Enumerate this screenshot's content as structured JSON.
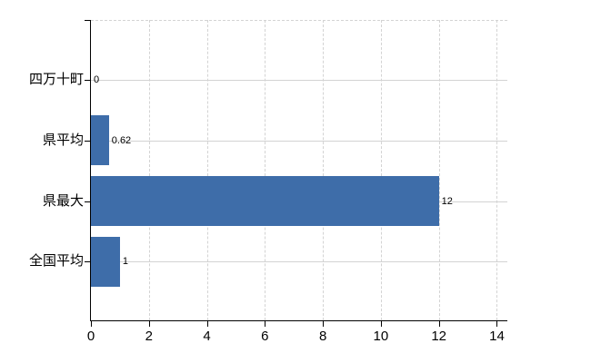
{
  "chart_data": {
    "type": "bar",
    "orientation": "horizontal",
    "title": "",
    "categories": [
      "四万十町",
      "県平均",
      "県最大",
      "全国平均"
    ],
    "values": [
      0,
      0.62,
      12,
      1
    ],
    "value_labels": [
      "0",
      "0.62",
      "12",
      "1"
    ],
    "x_tick_labels": [
      "0",
      "2",
      "4",
      "6",
      "8",
      "10",
      "12",
      "14"
    ],
    "x_tick_values": [
      0,
      2,
      4,
      6,
      8,
      10,
      12,
      14
    ],
    "xlim": [
      0,
      14.35
    ],
    "ylabel": "",
    "xlabel": "",
    "grid": true,
    "legend": "none",
    "colors": {
      "bar": "#3e6da9",
      "grid": "#d3d3d3",
      "axis": "#000000",
      "text": "#000000",
      "background": "#ffffff"
    }
  }
}
